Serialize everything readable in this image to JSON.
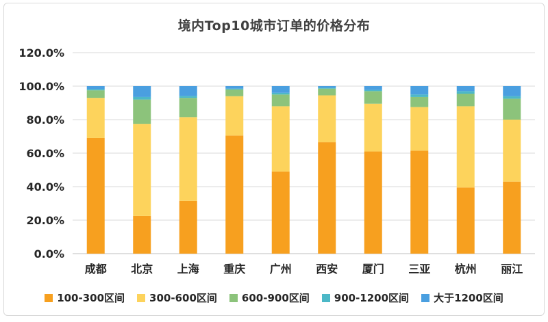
{
  "chart_data": {
    "type": "bar",
    "stacked": true,
    "title": "境内Top10城市订单的价格分布",
    "categories": [
      "成都",
      "北京",
      "上海",
      "重庆",
      "广州",
      "西安",
      "厦门",
      "三亚",
      "杭州",
      "丽江"
    ],
    "y_ticks": [
      "0.0%",
      "20.0%",
      "40.0%",
      "60.0%",
      "80.0%",
      "100.0%",
      "120.0%"
    ],
    "ylim": [
      0,
      120
    ],
    "grid": true,
    "legend_position": "bottom",
    "series": [
      {
        "name": "100-300区间",
        "color": "#f7a01f",
        "values": [
          69,
          22.5,
          31.5,
          70.5,
          49,
          66.5,
          61,
          61.5,
          39.5,
          43
        ]
      },
      {
        "name": "300-600区间",
        "color": "#fdd35c",
        "values": [
          24,
          55,
          50,
          23.5,
          39,
          28,
          28.5,
          26,
          48.5,
          37
        ]
      },
      {
        "name": "600-900区间",
        "color": "#8cc37b",
        "values": [
          4.5,
          14.5,
          11.5,
          4,
          7,
          4,
          7.5,
          6,
          7.5,
          12.5
        ]
      },
      {
        "name": "900-1200区间",
        "color": "#4cb8c7",
        "values": [
          0.7,
          1.5,
          1.2,
          0.5,
          1,
          0.5,
          0.7,
          1.5,
          1.5,
          1.5
        ]
      },
      {
        "name": "大于1200区间",
        "color": "#4a9fe0",
        "values": [
          1.8,
          6.5,
          5.8,
          1.5,
          4,
          1,
          2.3,
          5,
          3,
          6
        ]
      }
    ]
  }
}
